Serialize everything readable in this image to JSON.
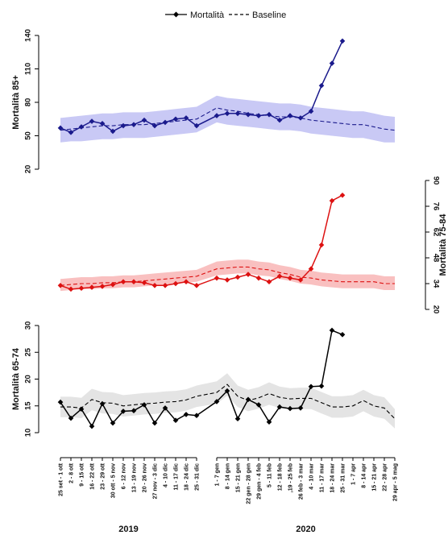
{
  "legend": {
    "items": [
      {
        "label": "Mortalità",
        "style": "solid-diamond"
      },
      {
        "label": "Baseline",
        "style": "dashed"
      }
    ],
    "position": "top-center"
  },
  "chart_data": {
    "type": "line",
    "categories": [
      "25 set - 1 ott",
      "2 - 8 ott",
      "9 - 15 ott",
      "16 - 22 ott",
      "23 - 29 ott",
      "30 ott - 5 nov",
      "6 - 12 nov",
      "13 - 19 nov",
      "20 - 26 nov",
      "27 nov - 3 dic",
      "4 - 10 dic",
      "11 - 17 dic",
      "18 - 24 dic",
      "25 - 31 dic",
      "1 - 7 gen",
      "8 - 14 gen",
      "15 - 21 gen",
      "22 gen - 28 gen",
      "29 gen - 4 feb",
      "5 - 11 feb",
      "12 - 18 feb",
      ",19 - 25 feb",
      "26 feb - 3 mar",
      "4 - 10 mar",
      "11 - 17 mar",
      "18 - 24 mar",
      "25 - 31 mar",
      "1 - 7 apr",
      "8 - 14 apr",
      "15 - 21 apr",
      "22 - 28 apr",
      "29 apr - 5 mag"
    ],
    "year_labels": [
      {
        "label": "2019",
        "from": 0,
        "to": 13
      },
      {
        "label": "2020",
        "from": 14,
        "to": 31
      }
    ],
    "panels": [
      {
        "ylabel": "Mortalità 85+",
        "yaxis_side": "left",
        "ylim": [
          20,
          140
        ],
        "yticks": [
          20,
          50,
          80,
          110,
          140
        ],
        "color": "#1a1a8c",
        "band_color": "#c9c9f5",
        "series": [
          {
            "name": "Mortalità",
            "values": [
              57,
              53,
              58,
              63,
              61,
              54,
              59,
              60,
              64,
              59,
              62,
              65,
              66,
              59,
              68,
              70,
              70,
              69,
              68,
              69,
              64,
              68,
              66,
              72,
              95,
              115,
              135,
              null,
              null,
              null,
              null,
              null
            ]
          },
          {
            "name": "Baseline",
            "values": [
              55,
              56,
              57,
              58,
              59,
              59,
              60,
              60,
              60,
              61,
              62,
              63,
              64,
              65,
              75,
              73,
              72,
              70,
              69,
              68,
              67,
              67,
              66,
              64,
              63,
              62,
              61,
              60,
              60,
              58,
              56,
              55
            ]
          },
          {
            "name": "lower",
            "values": [
              44,
              45,
              45,
              46,
              47,
              47,
              48,
              48,
              48,
              49,
              50,
              51,
              52,
              53,
              62,
              60,
              59,
              58,
              57,
              56,
              55,
              55,
              54,
              52,
              51,
              50,
              49,
              48,
              48,
              46,
              44,
              44
            ]
          },
          {
            "name": "upper",
            "values": [
              66,
              67,
              68,
              69,
              70,
              70,
              71,
              71,
              71,
              72,
              73,
              74,
              75,
              76,
              86,
              84,
              83,
              82,
              81,
              80,
              79,
              79,
              78,
              76,
              75,
              74,
              73,
              72,
              72,
              70,
              68,
              67
            ]
          }
        ]
      },
      {
        "ylabel": "Mortalità 75-84",
        "yaxis_side": "right",
        "ylim": [
          20,
          90
        ],
        "yticks": [
          20,
          34,
          48,
          62,
          76,
          90
        ],
        "color": "#dd1111",
        "band_color": "#f9c0c0",
        "series": [
          {
            "name": "Mortalità",
            "values": [
              33,
              31,
              31.5,
              32,
              32.5,
              33.5,
              35,
              35,
              34.5,
              33,
              33,
              34,
              35,
              33,
              37,
              36,
              37.5,
              39,
              37,
              35,
              38,
              37,
              36,
              42,
              55,
              79,
              82,
              null,
              null,
              null,
              null,
              null
            ]
          },
          {
            "name": "Baseline",
            "values": [
              33,
              33.5,
              34,
              34,
              34.5,
              34.5,
              35,
              35,
              35.5,
              36,
              36.5,
              37,
              37.5,
              38,
              42,
              42.5,
              43,
              43,
              42,
              41.5,
              40,
              39,
              37.5,
              37,
              36,
              35.5,
              35,
              35,
              35,
              35,
              34,
              34
            ]
          },
          {
            "name": "lower",
            "values": [
              30,
              30.5,
              31,
              31,
              31.5,
              31.5,
              32,
              32,
              32.5,
              33,
              33.5,
              34,
              34.5,
              35,
              38.5,
              39,
              39.5,
              39.5,
              38.5,
              38,
              36.5,
              35.5,
              34,
              33.5,
              32.5,
              32,
              31.5,
              31.5,
              31.5,
              31.5,
              30.5,
              30.5
            ]
          },
          {
            "name": "upper",
            "values": [
              36.5,
              37,
              37.5,
              37.5,
              38,
              38,
              38.5,
              38.5,
              39,
              39.5,
              40,
              40.5,
              41,
              41.5,
              46,
              46.5,
              47,
              47,
              46,
              45.5,
              44,
              43,
              41.5,
              41,
              40,
              39.5,
              39,
              39,
              39,
              39,
              38,
              38
            ]
          }
        ]
      },
      {
        "ylabel": "Mortalità 65-74",
        "yaxis_side": "left",
        "ylim": [
          10,
          30
        ],
        "yticks": [
          10,
          15,
          20,
          25,
          30
        ],
        "color": "#000000",
        "band_color": "#e4e4e4",
        "series": [
          {
            "name": "Mortalità",
            "values": [
              15.7,
              12.7,
              14.4,
              11.2,
              15.4,
              11.8,
              14.0,
              14.1,
              15.2,
              11.8,
              14.6,
              12.3,
              13.4,
              13.2,
              15.8,
              17.8,
              12.6,
              16.2,
              15.2,
              12.0,
              14.8,
              14.5,
              14.6,
              18.6,
              18.7,
              29.1,
              28.3,
              null,
              null,
              null,
              null,
              null
            ]
          },
          {
            "name": "Baseline",
            "values": [
              14.8,
              14.8,
              14.6,
              16.2,
              15.6,
              15.5,
              15.0,
              15.2,
              15.4,
              15.5,
              15.7,
              15.8,
              16.1,
              16.8,
              17.5,
              19.0,
              16.8,
              16.0,
              16.5,
              17.3,
              16.6,
              16.3,
              16.4,
              16.4,
              15.6,
              14.8,
              14.8,
              15.0,
              16.0,
              15.0,
              14.6,
              12.6
            ]
          },
          {
            "name": "lower",
            "values": [
              12.9,
              12.9,
              12.7,
              14.2,
              13.6,
              13.5,
              13.0,
              13.2,
              13.4,
              13.5,
              13.7,
              13.8,
              14.1,
              14.8,
              15.4,
              16.9,
              14.8,
              14.0,
              14.5,
              15.2,
              14.6,
              14.3,
              14.4,
              14.4,
              13.6,
              12.8,
              12.8,
              13.0,
              14.0,
              13.0,
              12.6,
              10.8
            ]
          },
          {
            "name": "upper",
            "values": [
              16.7,
              16.7,
              16.5,
              18.2,
              17.6,
              17.5,
              17.0,
              17.2,
              17.4,
              17.5,
              17.7,
              17.8,
              18.1,
              18.8,
              19.6,
              21.1,
              18.8,
              18.0,
              18.5,
              19.4,
              18.6,
              18.3,
              18.4,
              18.4,
              17.6,
              16.8,
              16.8,
              17.0,
              18.0,
              17.0,
              16.6,
              14.4
            ]
          }
        ]
      }
    ]
  }
}
